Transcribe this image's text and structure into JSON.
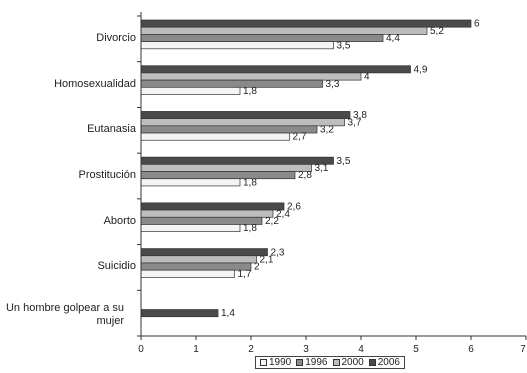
{
  "chart_data": {
    "type": "bar",
    "orientation": "horizontal",
    "categories": [
      "Divorcio",
      "Homosexualidad",
      "Eutanasia",
      "Prostitución",
      "Aborto",
      "Suicidio",
      "Un hombre golpear a su mujer"
    ],
    "series": [
      {
        "name": "1990",
        "color": "#f4f4f4",
        "values": [
          3.5,
          1.8,
          2.7,
          1.8,
          1.8,
          1.7,
          null
        ],
        "labels": [
          "3,5",
          "1,8",
          "2,7",
          "1,8",
          "1,8",
          "1,7",
          ""
        ]
      },
      {
        "name": "1996",
        "color": "#8a8a8a",
        "values": [
          4.4,
          3.3,
          3.2,
          2.8,
          2.2,
          2.0,
          null
        ],
        "labels": [
          "4,4",
          "3,3",
          "3,2",
          "2,8",
          "2,2",
          "2",
          ""
        ]
      },
      {
        "name": "2000",
        "color": "#bdbdbd",
        "values": [
          5.2,
          4.0,
          3.7,
          3.1,
          2.4,
          2.1,
          null
        ],
        "labels": [
          "5,2",
          "4",
          "3,7",
          "3,1",
          "2,4",
          "2,1",
          ""
        ]
      },
      {
        "name": "2006",
        "color": "#4a4a4a",
        "values": [
          6.0,
          4.9,
          3.8,
          3.5,
          2.6,
          2.3,
          1.4
        ],
        "labels": [
          "6",
          "4,9",
          "3,8",
          "3,5",
          "2,6",
          "2,3",
          "1,4"
        ]
      }
    ],
    "xlim": [
      0,
      7
    ],
    "xticks": [
      "0",
      "1",
      "2",
      "3",
      "4",
      "5",
      "6",
      "7"
    ],
    "grid": false,
    "legend": "bottom"
  }
}
